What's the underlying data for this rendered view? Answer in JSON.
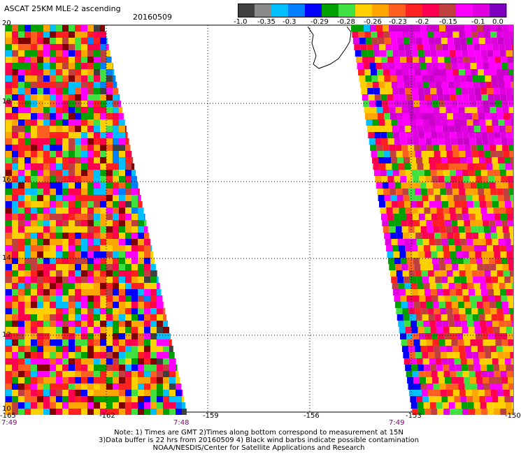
{
  "header": {
    "title": "ASCAT 25KM MLE-2 ascending",
    "date": "20160509"
  },
  "colorbar": {
    "colors": [
      "#404040",
      "#8a8a8a",
      "#00bfff",
      "#0080ff",
      "#0000ff",
      "#00a000",
      "#40e040",
      "#ffd000",
      "#ffa500",
      "#ff6020",
      "#ff2020",
      "#ff0050",
      "#c04040",
      "#ff00ff",
      "#e000e0",
      "#8000c0"
    ],
    "tick_labels": [
      "-1.0",
      "-0.35",
      "-0.3",
      "-0.29",
      "-0.28",
      "-0.26",
      "-0.23",
      "-0.2",
      "-0.15",
      "-0.1",
      "0.0"
    ]
  },
  "map": {
    "lon_labels": [
      "-165",
      "-162",
      "-159",
      "-156",
      "-153",
      "-150"
    ],
    "lat_labels": [
      "20",
      "18",
      "16",
      "14",
      "12",
      "10"
    ],
    "time_labels": [
      "7:49",
      "7:48",
      "7:49"
    ]
  },
  "notes": [
    "Note: 1) Times are GMT 2)Times along bottom correspond to measurement at 15N",
    "3)Data buffer is 22 hrs from 20160509 4) Black wind barbs indicate possible contamination",
    "NOAA/NESDIS/Center for Satellite Applications and Research"
  ]
}
